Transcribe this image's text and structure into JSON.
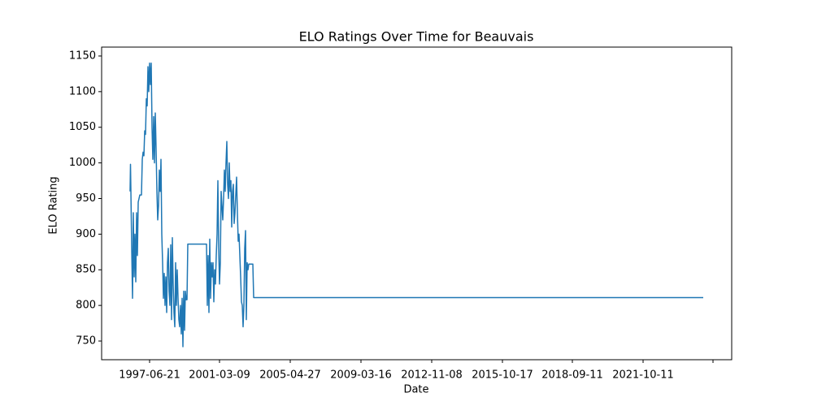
{
  "chart_data": {
    "type": "line",
    "title": "ELO Ratings Over Time for Beauvais",
    "xlabel": "Date",
    "ylabel": "ELO Rating",
    "color": "#1f77b4",
    "x": [
      60,
      63,
      66,
      72,
      78,
      84,
      90,
      96,
      102,
      108,
      114,
      120,
      126,
      132,
      144,
      150,
      156,
      162,
      168,
      174,
      180,
      186,
      192,
      198,
      204,
      210,
      216,
      222,
      228,
      234,
      240,
      246,
      252,
      258,
      264,
      270,
      276,
      282,
      288,
      294,
      300,
      306,
      312,
      318,
      324,
      330,
      336,
      342,
      348,
      354,
      360,
      366,
      372,
      378,
      384,
      390,
      396,
      402,
      408,
      414,
      420,
      426,
      432,
      438,
      444,
      450,
      456,
      462,
      468,
      474,
      480,
      486,
      624,
      630,
      636,
      642,
      648,
      654,
      660,
      666,
      672,
      678,
      684,
      690,
      696,
      702,
      708,
      714,
      720,
      726,
      732,
      738,
      744,
      750,
      756,
      762,
      768,
      774,
      780,
      786,
      792,
      798,
      804,
      810,
      816,
      822,
      828,
      834,
      840,
      846,
      852,
      858,
      864,
      870,
      876,
      882,
      888,
      894,
      900,
      906,
      912,
      918,
      924,
      930,
      936,
      966,
      972,
      4290
    ],
    "values": [
      960,
      998,
      960,
      880,
      810,
      930,
      840,
      900,
      833,
      930,
      870,
      945,
      950,
      955,
      955,
      1005,
      1015,
      1010,
      1045,
      1040,
      1090,
      1080,
      1135,
      1100,
      1140,
      1110,
      1140,
      1050,
      1005,
      1065,
      1000,
      1070,
      1020,
      960,
      920,
      940,
      990,
      960,
      1005,
      900,
      860,
      810,
      845,
      800,
      840,
      790,
      860,
      880,
      820,
      800,
      885,
      780,
      895,
      830,
      790,
      770,
      860,
      800,
      850,
      810,
      780,
      770,
      800,
      760,
      810,
      742,
      820,
      765,
      820,
      808,
      808,
      886,
      886,
      800,
      870,
      790,
      893,
      810,
      860,
      840,
      860,
      805,
      850,
      830,
      870,
      900,
      975,
      880,
      830,
      860,
      960,
      940,
      920,
      950,
      990,
      960,
      1000,
      1030,
      970,
      950,
      1000,
      960,
      975,
      910,
      960,
      970,
      915,
      930,
      955,
      980,
      930,
      890,
      900,
      870,
      840,
      805,
      800,
      770,
      800,
      880,
      905,
      780,
      860,
      850,
      858,
      858,
      811,
      811
    ],
    "xlim": [
      -150,
      4500
    ],
    "ylim": [
      723.8,
      1162.5
    ],
    "xticks": [
      {
        "value": 204,
        "label": "1997-06-21"
      },
      {
        "value": 720,
        "label": "2001-03-09"
      },
      {
        "value": 1242,
        "label": "2005-04-27"
      },
      {
        "value": 1764,
        "label": "2009-03-16"
      },
      {
        "value": 2286,
        "label": "2012-11-08"
      },
      {
        "value": 2808,
        "label": "2015-10-17"
      },
      {
        "value": 3324,
        "label": "2018-09-11"
      },
      {
        "value": 3846,
        "label": "2021-10-11"
      },
      {
        "value": 4362,
        "label": null
      }
    ],
    "yticks": [
      750,
      800,
      850,
      900,
      950,
      1000,
      1050,
      1100,
      1150
    ]
  }
}
